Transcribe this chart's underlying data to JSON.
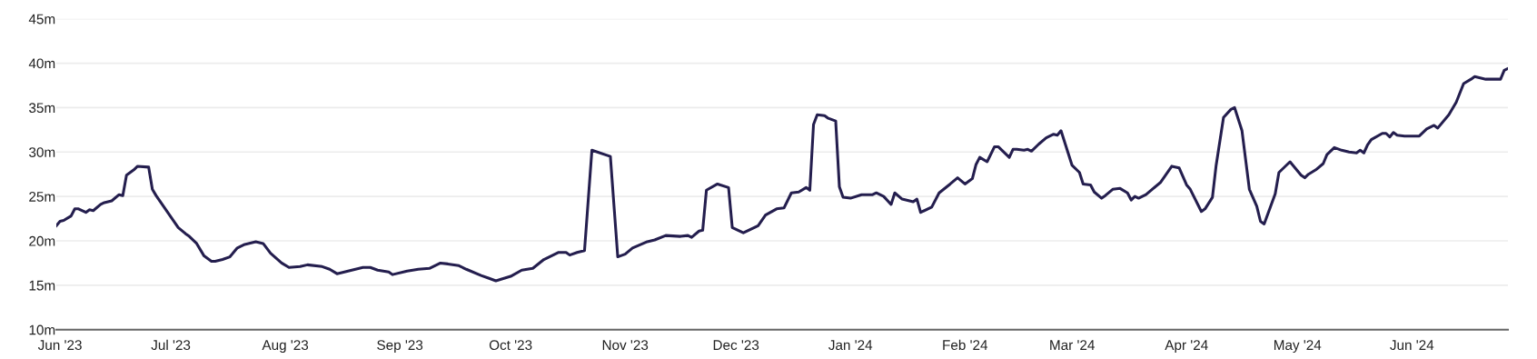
{
  "chart_data": {
    "type": "line",
    "xlim": [
      "2023-05-31",
      "2024-06-27"
    ],
    "ylim": [
      10,
      45
    ],
    "yticks": [
      {
        "value": 10,
        "label": "10m"
      },
      {
        "value": 15,
        "label": "15m"
      },
      {
        "value": 20,
        "label": "20m"
      },
      {
        "value": 25,
        "label": "25m"
      },
      {
        "value": 30,
        "label": "30m"
      },
      {
        "value": 35,
        "label": "35m"
      },
      {
        "value": 40,
        "label": "40m"
      },
      {
        "value": 45,
        "label": "45m"
      }
    ],
    "xticks": [
      {
        "value": "2023-06-01",
        "label": "Jun '23"
      },
      {
        "value": "2023-07-01",
        "label": "Jul '23"
      },
      {
        "value": "2023-08-01",
        "label": "Aug '23"
      },
      {
        "value": "2023-09-01",
        "label": "Sep '23"
      },
      {
        "value": "2023-10-01",
        "label": "Oct '23"
      },
      {
        "value": "2023-11-01",
        "label": "Nov '23"
      },
      {
        "value": "2023-12-01",
        "label": "Dec '23"
      },
      {
        "value": "2024-01-01",
        "label": "Jan '24"
      },
      {
        "value": "2024-02-01",
        "label": "Feb '24"
      },
      {
        "value": "2024-03-01",
        "label": "Mar '24"
      },
      {
        "value": "2024-04-01",
        "label": "Apr '24"
      },
      {
        "value": "2024-05-01",
        "label": "May '24"
      },
      {
        "value": "2024-06-01",
        "label": "Jun '24"
      }
    ],
    "grid": "y",
    "marker": "none",
    "line_style": "solid",
    "series": [
      {
        "color": "#241e4e",
        "x": [
          "2023-05-31",
          "2023-06-01",
          "2023-06-02",
          "2023-06-04",
          "2023-06-05",
          "2023-06-06",
          "2023-06-08",
          "2023-06-09",
          "2023-06-10",
          "2023-06-12",
          "2023-06-13",
          "2023-06-15",
          "2023-06-17",
          "2023-06-18",
          "2023-06-19",
          "2023-06-21",
          "2023-06-22",
          "2023-06-25",
          "2023-06-26",
          "2023-06-27",
          "2023-06-29",
          "2023-07-01",
          "2023-07-03",
          "2023-07-05",
          "2023-07-06",
          "2023-07-08",
          "2023-07-10",
          "2023-07-12",
          "2023-07-13",
          "2023-07-15",
          "2023-07-17",
          "2023-07-19",
          "2023-07-21",
          "2023-07-24",
          "2023-07-26",
          "2023-07-28",
          "2023-07-31",
          "2023-08-02",
          "2023-08-05",
          "2023-08-07",
          "2023-08-11",
          "2023-08-13",
          "2023-08-15",
          "2023-08-17",
          "2023-08-20",
          "2023-08-22",
          "2023-08-24",
          "2023-08-26",
          "2023-08-29",
          "2023-08-30",
          "2023-09-03",
          "2023-09-06",
          "2023-09-09",
          "2023-09-12",
          "2023-09-14",
          "2023-09-17",
          "2023-09-19",
          "2023-09-23",
          "2023-09-25",
          "2023-09-27",
          "2023-10-01",
          "2023-10-04",
          "2023-10-07",
          "2023-10-10",
          "2023-10-14",
          "2023-10-16",
          "2023-10-17",
          "2023-10-19",
          "2023-10-21",
          "2023-10-23",
          "2023-10-28",
          "2023-10-30",
          "2023-11-01",
          "2023-11-03",
          "2023-11-07",
          "2023-11-09",
          "2023-11-12",
          "2023-11-16",
          "2023-11-18",
          "2023-11-19",
          "2023-11-21",
          "2023-11-22",
          "2023-11-23",
          "2023-11-26",
          "2023-11-29",
          "2023-11-30",
          "2023-12-03",
          "2023-12-07",
          "2023-12-09",
          "2023-12-12",
          "2023-12-14",
          "2023-12-16",
          "2023-12-18",
          "2023-12-20",
          "2023-12-21",
          "2023-12-22",
          "2023-12-23",
          "2023-12-25",
          "2023-12-26",
          "2023-12-28",
          "2023-12-29",
          "2023-12-30",
          "2024-01-01",
          "2024-01-04",
          "2024-01-07",
          "2024-01-08",
          "2024-01-10",
          "2024-01-12",
          "2024-01-13",
          "2024-01-15",
          "2024-01-18",
          "2024-01-19",
          "2024-01-20",
          "2024-01-23",
          "2024-01-25",
          "2024-01-28",
          "2024-01-30",
          "2024-02-01",
          "2024-02-03",
          "2024-02-04",
          "2024-02-05",
          "2024-02-07",
          "2024-02-09",
          "2024-02-10",
          "2024-02-13",
          "2024-02-14",
          "2024-02-15",
          "2024-02-17",
          "2024-02-18",
          "2024-02-19",
          "2024-02-21",
          "2024-02-23",
          "2024-02-25",
          "2024-02-26",
          "2024-02-27",
          "2024-02-29",
          "2024-03-01",
          "2024-03-03",
          "2024-03-04",
          "2024-03-06",
          "2024-03-07",
          "2024-03-09",
          "2024-03-10",
          "2024-03-12",
          "2024-03-14",
          "2024-03-16",
          "2024-03-17",
          "2024-03-18",
          "2024-03-19",
          "2024-03-21",
          "2024-03-25",
          "2024-03-28",
          "2024-03-30",
          "2024-04-01",
          "2024-04-02",
          "2024-04-05",
          "2024-04-06",
          "2024-04-08",
          "2024-04-09",
          "2024-04-11",
          "2024-04-13",
          "2024-04-14",
          "2024-04-16",
          "2024-04-18",
          "2024-04-20",
          "2024-04-21",
          "2024-04-22",
          "2024-04-25",
          "2024-04-26",
          "2024-04-29",
          "2024-05-02",
          "2024-05-03",
          "2024-05-04",
          "2024-05-06",
          "2024-05-08",
          "2024-05-09",
          "2024-05-11",
          "2024-05-13",
          "2024-05-15",
          "2024-05-17",
          "2024-05-18",
          "2024-05-19",
          "2024-05-20",
          "2024-05-21",
          "2024-05-24",
          "2024-05-25",
          "2024-05-26",
          "2024-05-27",
          "2024-05-28",
          "2024-05-30",
          "2024-06-03",
          "2024-06-05",
          "2024-06-07",
          "2024-06-08",
          "2024-06-11",
          "2024-06-13",
          "2024-06-15",
          "2024-06-17",
          "2024-06-18",
          "2024-06-21",
          "2024-06-25",
          "2024-06-26",
          "2024-06-27"
        ],
        "values": [
          21.7,
          22.2,
          22.3,
          22.8,
          23.6,
          23.6,
          23.2,
          23.5,
          23.4,
          24.1,
          24.3,
          24.5,
          25.2,
          25.1,
          27.4,
          28.0,
          28.4,
          28.3,
          25.8,
          25.1,
          23.9,
          22.7,
          21.5,
          20.8,
          20.5,
          19.7,
          18.3,
          17.7,
          17.7,
          17.9,
          18.2,
          19.2,
          19.6,
          19.9,
          19.7,
          18.6,
          17.5,
          17.0,
          17.1,
          17.3,
          17.1,
          16.8,
          16.3,
          16.5,
          16.8,
          17.0,
          17.0,
          16.7,
          16.5,
          16.2,
          16.6,
          16.8,
          16.9,
          17.5,
          17.4,
          17.2,
          16.8,
          16.1,
          15.8,
          15.5,
          16.0,
          16.7,
          16.9,
          17.9,
          18.7,
          18.7,
          18.4,
          18.7,
          18.9,
          30.2,
          29.5,
          18.2,
          18.5,
          19.2,
          19.9,
          20.1,
          20.6,
          20.5,
          20.6,
          20.4,
          21.1,
          21.2,
          25.7,
          26.4,
          26.0,
          21.5,
          20.9,
          21.7,
          22.9,
          23.6,
          23.7,
          25.4,
          25.5,
          26.0,
          25.7,
          33.1,
          34.2,
          34.1,
          33.8,
          33.5,
          26.1,
          24.9,
          24.8,
          25.2,
          25.2,
          25.4,
          25.0,
          24.1,
          25.4,
          24.7,
          24.4,
          24.7,
          23.2,
          23.8,
          25.4,
          26.4,
          27.1,
          26.4,
          27.0,
          28.6,
          29.4,
          28.9,
          30.6,
          30.6,
          29.4,
          30.3,
          30.3,
          30.2,
          30.3,
          30.1,
          30.9,
          31.6,
          32.0,
          31.9,
          32.4,
          29.8,
          28.5,
          27.7,
          26.4,
          26.3,
          25.5,
          24.8,
          25.1,
          25.8,
          25.9,
          25.4,
          24.6,
          25.0,
          24.8,
          25.2,
          26.6,
          28.4,
          28.2,
          26.3,
          25.8,
          23.3,
          23.6,
          24.9,
          28.5,
          33.9,
          34.8,
          35.0,
          32.4,
          25.8,
          23.9,
          22.2,
          21.9,
          25.3,
          27.7,
          28.9,
          27.4,
          27.1,
          27.5,
          28.0,
          28.7,
          29.7,
          30.5,
          30.2,
          30.0,
          29.9,
          30.2,
          29.9,
          30.8,
          31.4,
          32.1,
          32.1,
          31.7,
          32.2,
          31.9,
          31.8,
          31.8,
          32.6,
          33.0,
          32.7,
          34.2,
          35.6,
          37.7,
          38.2,
          38.5,
          38.2,
          38.2,
          39.2,
          39.4
        ]
      }
    ]
  }
}
